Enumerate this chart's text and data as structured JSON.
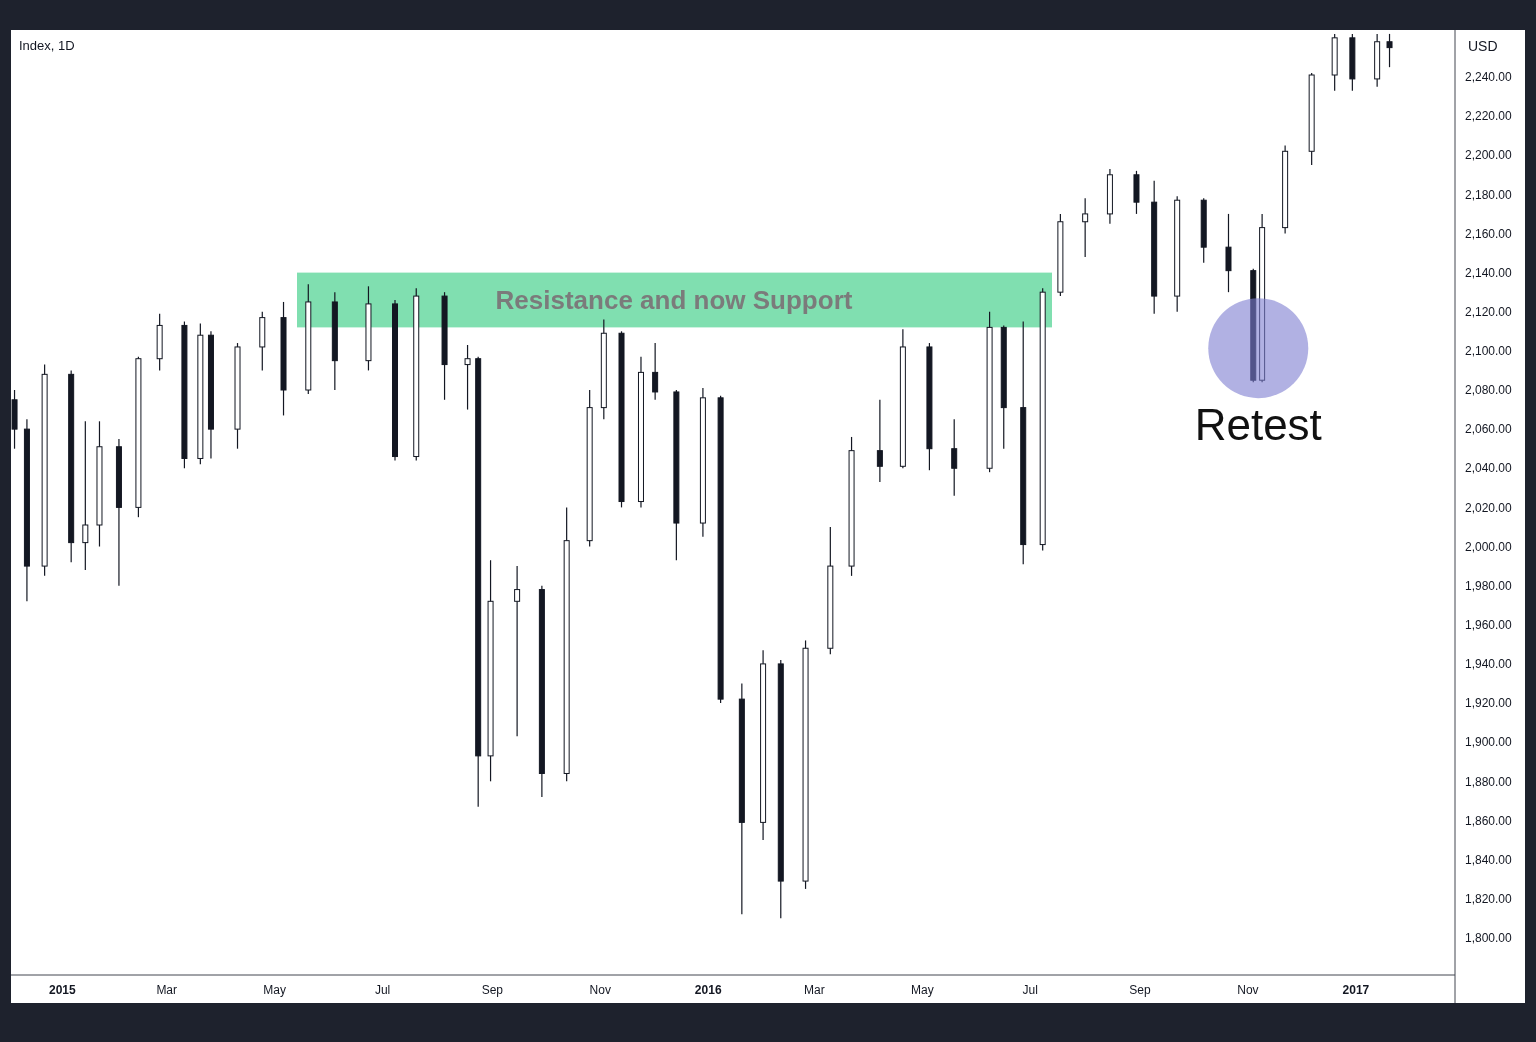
{
  "chart_data": {
    "type": "candlestick",
    "title": "Index, 1D",
    "ylabel": "USD",
    "color": "#131722",
    "xlim": [
      "2014-12-03",
      "2017-02-26"
    ],
    "xticks": [
      {
        "value": "2015-01-01",
        "label": "2015"
      },
      {
        "value": "2015-03-01",
        "label": "Mar"
      },
      {
        "value": "2015-05-01",
        "label": "May"
      },
      {
        "value": "2015-07-01",
        "label": "Jul"
      },
      {
        "value": "2015-09-01",
        "label": "Sep"
      },
      {
        "value": "2015-11-01",
        "label": "Nov"
      },
      {
        "value": "2016-01-01",
        "label": "2016"
      },
      {
        "value": "2016-03-01",
        "label": "Mar"
      },
      {
        "value": "2016-05-01",
        "label": "May"
      },
      {
        "value": "2016-07-01",
        "label": "Jul"
      },
      {
        "value": "2016-09-01",
        "label": "Sep"
      },
      {
        "value": "2016-11-01",
        "label": "Nov"
      },
      {
        "value": "2017-01-01",
        "label": "2017"
      }
    ],
    "ylim": [
      1781,
      2264
    ],
    "yticks": [
      {
        "value": 1800,
        "label": "1,800.00"
      },
      {
        "value": 1820,
        "label": "1,820.00"
      },
      {
        "value": 1840,
        "label": "1,840.00"
      },
      {
        "value": 1860,
        "label": "1,860.00"
      },
      {
        "value": 1880,
        "label": "1,880.00"
      },
      {
        "value": 1900,
        "label": "1,900.00"
      },
      {
        "value": 1920,
        "label": "1,920.00"
      },
      {
        "value": 1940,
        "label": "1,940.00"
      },
      {
        "value": 1960,
        "label": "1,960.00"
      },
      {
        "value": 1980,
        "label": "1,980.00"
      },
      {
        "value": 2000,
        "label": "2,000.00"
      },
      {
        "value": 2020,
        "label": "2,020.00"
      },
      {
        "value": 2040,
        "label": "2,040.00"
      },
      {
        "value": 2060,
        "label": "2,060.00"
      },
      {
        "value": 2080,
        "label": "2,080.00"
      },
      {
        "value": 2100,
        "label": "2,100.00"
      },
      {
        "value": 2120,
        "label": "2,120.00"
      },
      {
        "value": 2140,
        "label": "2,140.00"
      },
      {
        "value": 2160,
        "label": "2,160.00"
      },
      {
        "value": 2180,
        "label": "2,180.00"
      },
      {
        "value": 2200,
        "label": "2,200.00"
      },
      {
        "value": 2220,
        "label": "2,220.00"
      },
      {
        "value": 2240,
        "label": "2,240.00"
      }
    ],
    "x": [
      "2014-12-05",
      "2014-12-12",
      "2014-12-22",
      "2015-01-06",
      "2015-01-14",
      "2015-01-22",
      "2015-02-02",
      "2015-02-13",
      "2015-02-25",
      "2015-03-11",
      "2015-03-20",
      "2015-03-26",
      "2015-04-10",
      "2015-04-24",
      "2015-05-06",
      "2015-05-20",
      "2015-06-04",
      "2015-06-23",
      "2015-07-08",
      "2015-07-20",
      "2015-08-05",
      "2015-08-18",
      "2015-08-24",
      "2015-08-31",
      "2015-09-15",
      "2015-09-29",
      "2015-10-13",
      "2015-10-26",
      "2015-11-03",
      "2015-11-13",
      "2015-11-24",
      "2015-12-02",
      "2015-12-14",
      "2015-12-29",
      "2016-01-08",
      "2016-01-20",
      "2016-02-01",
      "2016-02-11",
      "2016-02-25",
      "2016-03-10",
      "2016-03-22",
      "2016-04-07",
      "2016-04-20",
      "2016-05-05",
      "2016-05-19",
      "2016-06-08",
      "2016-06-16",
      "2016-06-27",
      "2016-07-08",
      "2016-07-18",
      "2016-08-01",
      "2016-08-15",
      "2016-08-30",
      "2016-09-09",
      "2016-09-22",
      "2016-10-07",
      "2016-10-21",
      "2016-11-04",
      "2016-11-09",
      "2016-11-22",
      "2016-12-07",
      "2016-12-20",
      "2016-12-30",
      "2017-01-13",
      "2017-01-20"
    ],
    "ohlc": [
      [
        2075,
        2080,
        2050,
        2060
      ],
      [
        2060,
        2065,
        1972,
        1990
      ],
      [
        1990,
        2093,
        1985,
        2088
      ],
      [
        2088,
        2090,
        1992,
        2002
      ],
      [
        2002,
        2064,
        1988,
        2011
      ],
      [
        2011,
        2064,
        2000,
        2051
      ],
      [
        2051,
        2055,
        1980,
        2020
      ],
      [
        2020,
        2097,
        2015,
        2096
      ],
      [
        2096,
        2119,
        2090,
        2113
      ],
      [
        2113,
        2115,
        2040,
        2045
      ],
      [
        2045,
        2114,
        2042,
        2108
      ],
      [
        2108,
        2110,
        2045,
        2060
      ],
      [
        2060,
        2104,
        2050,
        2102
      ],
      [
        2102,
        2120,
        2090,
        2117
      ],
      [
        2117,
        2125,
        2067,
        2080
      ],
      [
        2080,
        2134,
        2078,
        2125
      ],
      [
        2125,
        2130,
        2080,
        2095
      ],
      [
        2095,
        2133,
        2090,
        2124
      ],
      [
        2124,
        2126,
        2044,
        2046
      ],
      [
        2046,
        2132,
        2044,
        2128
      ],
      [
        2128,
        2130,
        2075,
        2093
      ],
      [
        2093,
        2103,
        2070,
        2096
      ],
      [
        2096,
        2097,
        1867,
        1893
      ],
      [
        1893,
        1993,
        1880,
        1972
      ],
      [
        1972,
        1990,
        1903,
        1978
      ],
      [
        1978,
        1980,
        1872,
        1884
      ],
      [
        1884,
        2020,
        1880,
        2003
      ],
      [
        2003,
        2080,
        2000,
        2071
      ],
      [
        2071,
        2116,
        2065,
        2109
      ],
      [
        2109,
        2110,
        2020,
        2023
      ],
      [
        2023,
        2097,
        2020,
        2089
      ],
      [
        2089,
        2104,
        2075,
        2079
      ],
      [
        2079,
        2080,
        1993,
        2012
      ],
      [
        2012,
        2081,
        2005,
        2076
      ],
      [
        2076,
        2077,
        1920,
        1922
      ],
      [
        1922,
        1930,
        1812,
        1859
      ],
      [
        1859,
        1947,
        1850,
        1940
      ],
      [
        1940,
        1942,
        1810,
        1829
      ],
      [
        1829,
        1952,
        1825,
        1948
      ],
      [
        1948,
        2010,
        1945,
        1990
      ],
      [
        1990,
        2056,
        1985,
        2049
      ],
      [
        2049,
        2075,
        2033,
        2041
      ],
      [
        2041,
        2111,
        2040,
        2102
      ],
      [
        2102,
        2104,
        2039,
        2050
      ],
      [
        2050,
        2065,
        2026,
        2040
      ],
      [
        2040,
        2120,
        2038,
        2112
      ],
      [
        2112,
        2113,
        2050,
        2071
      ],
      [
        2071,
        2115,
        1991,
        2001
      ],
      [
        2001,
        2132,
        1998,
        2130
      ],
      [
        2130,
        2170,
        2128,
        2166
      ],
      [
        2166,
        2178,
        2148,
        2170
      ],
      [
        2170,
        2193,
        2165,
        2190
      ],
      [
        2190,
        2192,
        2170,
        2176
      ],
      [
        2176,
        2187,
        2119,
        2128
      ],
      [
        2128,
        2179,
        2120,
        2177
      ],
      [
        2177,
        2178,
        2145,
        2153
      ],
      [
        2153,
        2170,
        2130,
        2141
      ],
      [
        2141,
        2142,
        2084,
        2085
      ],
      [
        2085,
        2170,
        2084,
        2163
      ],
      [
        2163,
        2205,
        2160,
        2202
      ],
      [
        2202,
        2242,
        2195,
        2241
      ],
      [
        2241,
        2262,
        2233,
        2260
      ],
      [
        2260,
        2262,
        2233,
        2239
      ],
      [
        2239,
        2262,
        2235,
        2258
      ],
      [
        2258,
        2262,
        2245,
        2255
      ]
    ],
    "bands": [
      {
        "axis": "y",
        "from": 2112,
        "to": 2140,
        "label": "Resistance and now Support",
        "color": "#80dfb0"
      }
    ],
    "annotations": [
      {
        "text": "Retest",
        "x": "2016-11-04",
        "y": 2084
      }
    ],
    "grid": false
  }
}
